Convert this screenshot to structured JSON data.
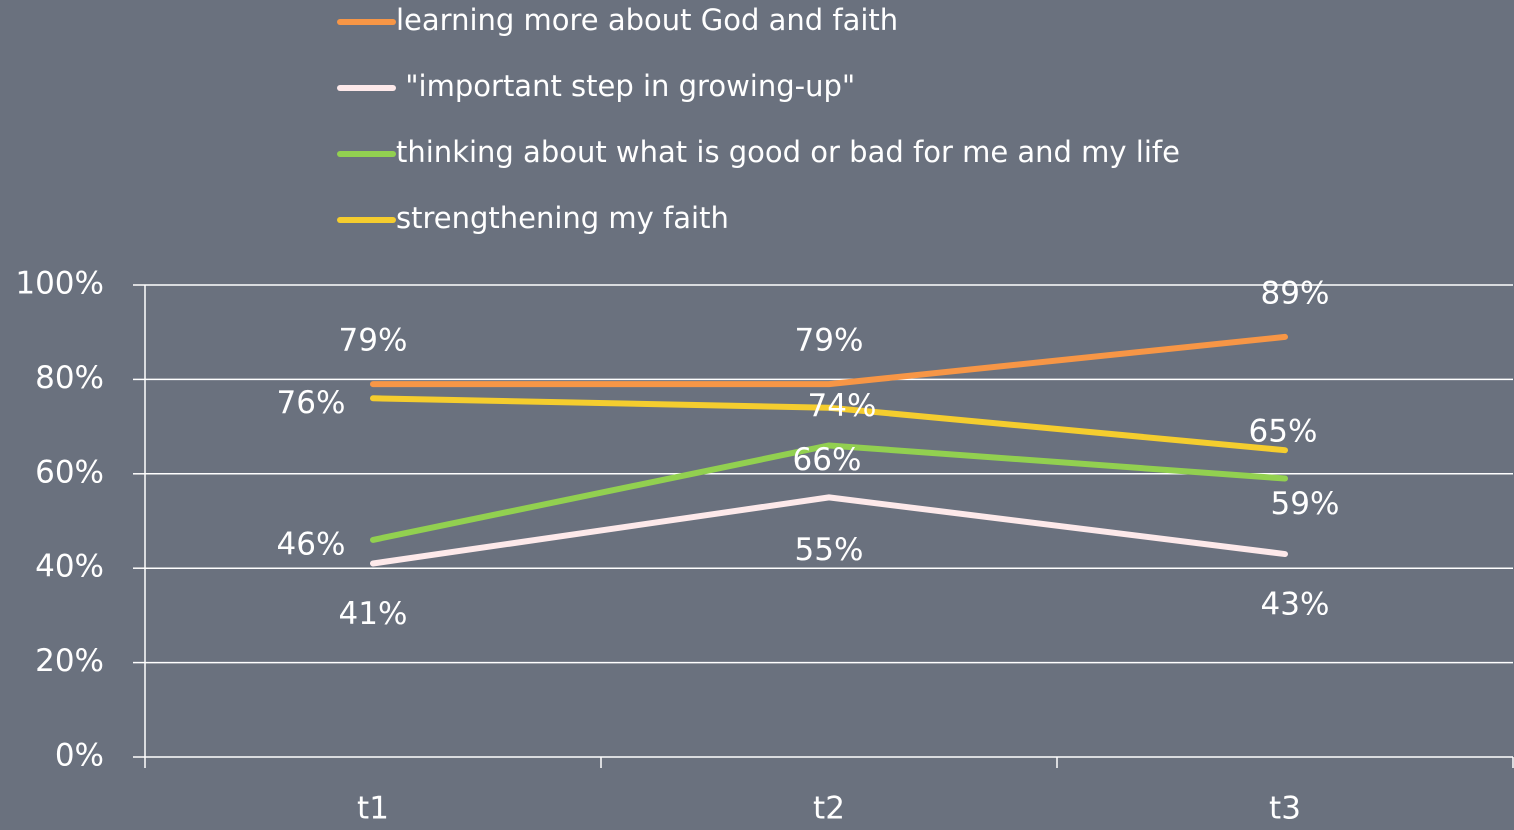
{
  "chart_data": {
    "type": "line",
    "categories": [
      "t1",
      "t2",
      "t3"
    ],
    "series": [
      {
        "name": "learning more about God and faith",
        "color": "#f79646",
        "values": [
          79,
          79,
          89
        ],
        "value_labels": [
          "79%",
          "79%",
          "89%"
        ]
      },
      {
        "name": " \"important step in growing-up\"",
        "color": "#fde9ea",
        "values": [
          41,
          55,
          43
        ],
        "value_labels": [
          "41%",
          "55%",
          "43%"
        ]
      },
      {
        "name": "thinking about what is good or bad for me and my life",
        "color": "#92d050",
        "values": [
          46,
          66,
          59
        ],
        "value_labels": [
          "46%",
          "66%",
          "59%"
        ]
      },
      {
        "name": "strengthening my faith",
        "color": "#f5cd2e",
        "values": [
          76,
          74,
          65
        ],
        "value_labels": [
          "76%",
          "74%",
          "65%"
        ]
      }
    ],
    "ylim": [
      0,
      100
    ],
    "yticks": [
      {
        "value": 0,
        "label": "0%"
      },
      {
        "value": 20,
        "label": "20%"
      },
      {
        "value": 40,
        "label": "40%"
      },
      {
        "value": 60,
        "label": "60%"
      },
      {
        "value": 80,
        "label": "80%"
      },
      {
        "value": 100,
        "label": "100%"
      }
    ],
    "grid": true,
    "legend": "top"
  }
}
